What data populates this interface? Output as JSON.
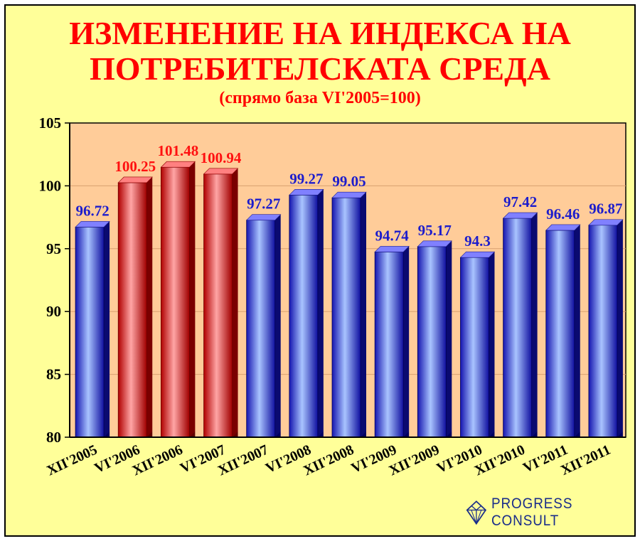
{
  "chart_data": {
    "type": "bar",
    "title": "ИЗМЕНЕНИЕ НА ИНДЕКСА НА ПОТРЕБИТЕЛСКАТА СРЕДА",
    "title_line1": "ИЗМЕНЕНИЕ НА ИНДЕКСА НА",
    "title_line2": "ПОТРЕБИТЕЛСКАТА СРЕДА",
    "subtitle": "(спрямо база VI'2005=100)",
    "categories": [
      "XII'2005",
      "VI'2006",
      "XII'2006",
      "VI'2007",
      "XII'2007",
      "VI'2008",
      "XII'2008",
      "VI'2009",
      "XII'2009",
      "VI'2010",
      "XII'2010",
      "VI'2011",
      "XII'2011"
    ],
    "values": [
      96.72,
      100.25,
      101.48,
      100.94,
      97.27,
      99.27,
      99.05,
      94.74,
      95.17,
      94.3,
      97.42,
      96.46,
      96.87
    ],
    "value_labels": [
      "96.72",
      "100.25",
      "101.48",
      "100.94",
      "97.27",
      "99.27",
      "99.05",
      "94.74",
      "95.17",
      "94.3",
      "97.42",
      "96.46",
      "96.87"
    ],
    "bar_colors": [
      "#2a2adf",
      "#ee2a2a",
      "#ee2a2a",
      "#ee2a2a",
      "#2a2adf",
      "#2a2adf",
      "#2a2adf",
      "#2a2adf",
      "#2a2adf",
      "#2a2adf",
      "#2a2adf",
      "#2a2adf",
      "#2a2adf"
    ],
    "label_colors": [
      "#1c1ccc",
      "#ff1010",
      "#ff1010",
      "#ff1010",
      "#1c1ccc",
      "#1c1ccc",
      "#1c1ccc",
      "#1c1ccc",
      "#1c1ccc",
      "#1c1ccc",
      "#1c1ccc",
      "#1c1ccc",
      "#1c1ccc"
    ],
    "yticks": [
      "80",
      "85",
      "90",
      "95",
      "100",
      "105"
    ],
    "ylim": [
      80,
      105
    ],
    "grid": true,
    "plot_background": "#ffcc99",
    "xlabel": "",
    "ylabel": ""
  },
  "logo": {
    "text": "PROGRESS CONSULT"
  }
}
